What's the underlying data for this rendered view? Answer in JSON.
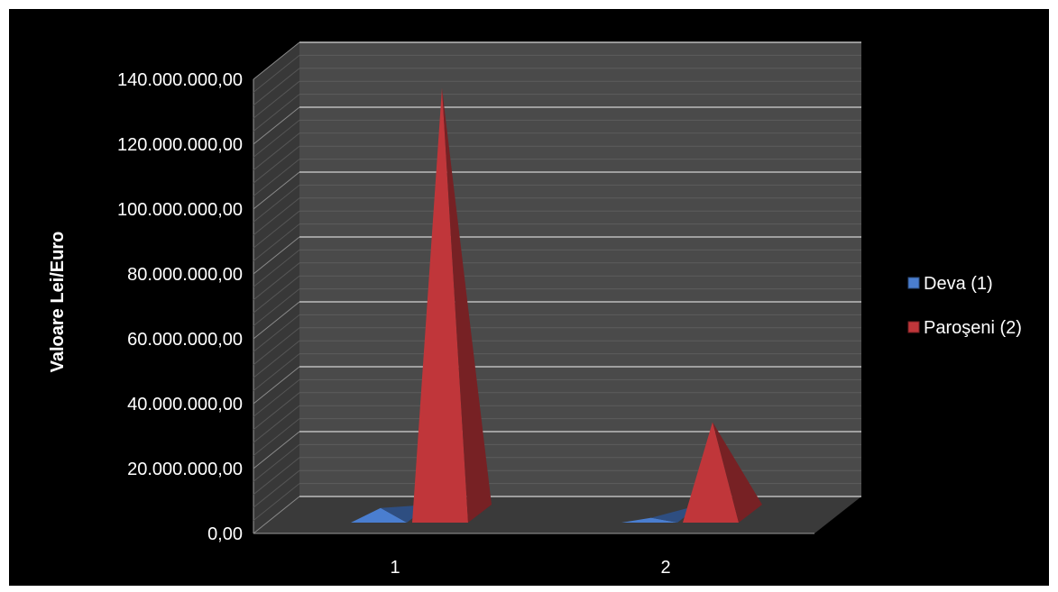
{
  "chart_data": {
    "type": "bar",
    "style": "3d-pyramid",
    "title": "",
    "xlabel": "",
    "ylabel": "Valoare Lei/Euro",
    "categories": [
      "1",
      "2"
    ],
    "series": [
      {
        "name": "Deva (1)",
        "color": "#4a7ed0",
        "values": [
          4500000,
          1500000
        ]
      },
      {
        "name": "Paroşeni (2)",
        "color": "#c0363a",
        "values": [
          134000000,
          31000000
        ]
      }
    ],
    "ylim": [
      0,
      140000000
    ],
    "yticks": [
      0,
      20000000,
      40000000,
      60000000,
      80000000,
      100000000,
      120000000,
      140000000
    ],
    "ytick_labels": [
      "0,00",
      "20.000.000,00",
      "40.000.000,00",
      "60.000.000,00",
      "80.000.000,00",
      "100.000.000,00",
      "120.000.000,00",
      "140.000.000,00"
    ],
    "grid": true,
    "legend_position": "right",
    "background_color": "#000000",
    "wall_color": "#4a4a4a",
    "text_color": "#ffffff"
  }
}
